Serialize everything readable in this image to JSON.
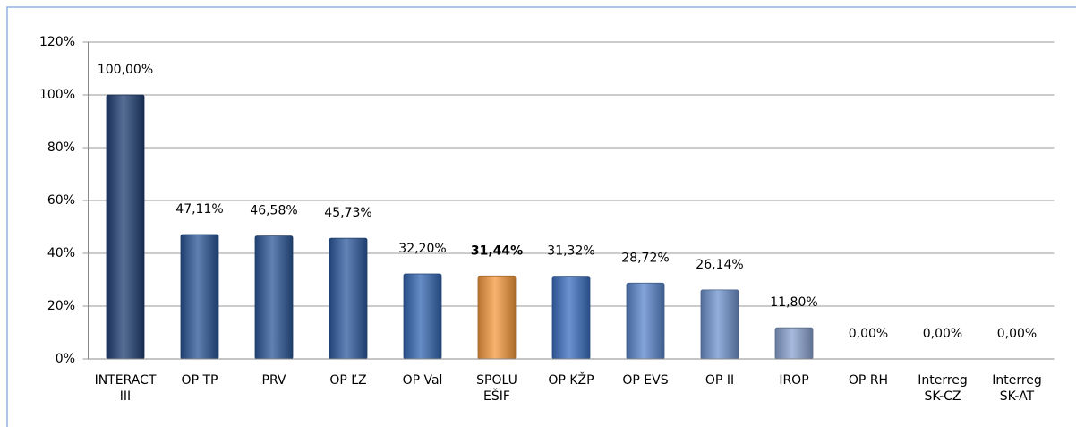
{
  "chart_data": {
    "type": "bar",
    "categories": [
      "INTERACT\nIII",
      "OP TP",
      "PRV",
      "OP ĽZ",
      "OP Val",
      "SPOLU\nEŠIF",
      "OP KŽP",
      "OP EVS",
      "OP II",
      "IROP",
      "OP RH",
      "Interreg\nSK-CZ",
      "Interreg\nSK-AT"
    ],
    "values": [
      100,
      47.11,
      46.58,
      45.73,
      32.2,
      31.44,
      31.32,
      28.72,
      26.14,
      11.8,
      0,
      0,
      0
    ],
    "value_labels": [
      "100,00%",
      "47,11%",
      "46,58%",
      "45,73%",
      "32,20%",
      "31,44%",
      "31,32%",
      "28,72%",
      "26,14%",
      "11,80%",
      "0,00%",
      "0,00%",
      "0,00%"
    ],
    "colors": [
      "#1f3f72",
      "#2a5596",
      "#2b5798",
      "#2d5a9e",
      "#3466b2",
      "#f59a3e",
      "#3a6fc0",
      "#5a86cc",
      "#6f93cf",
      "#8aa3d2",
      "#8aa3d2",
      "#8aa3d2",
      "#8aa3d2"
    ],
    "bold_labels": [
      5
    ],
    "ylim": [
      0,
      120
    ],
    "yticks": [
      {
        "value": 0,
        "label": "0%"
      },
      {
        "value": 20,
        "label": "20%"
      },
      {
        "value": 40,
        "label": "40%"
      },
      {
        "value": 60,
        "label": "60%"
      },
      {
        "value": 80,
        "label": "80%"
      },
      {
        "value": 100,
        "label": "100%"
      },
      {
        "value": 120,
        "label": "120%"
      }
    ],
    "grid": true
  }
}
